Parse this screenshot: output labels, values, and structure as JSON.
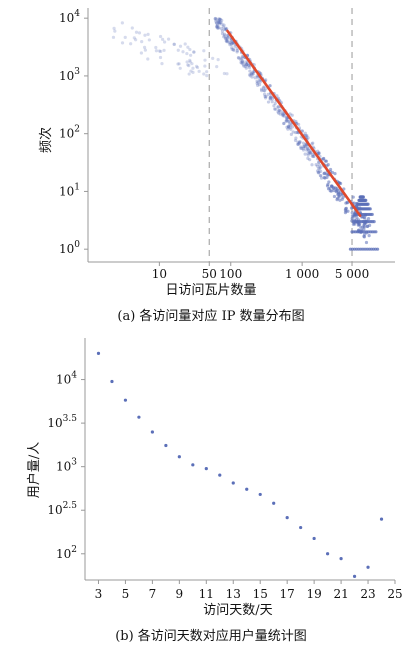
{
  "chart_data": [
    {
      "type": "scatter",
      "caption": "(a) 各访问量对应 IP 数量分布图",
      "xlabel": "日访问瓦片数量",
      "ylabel": "频次",
      "x_scale": "log",
      "y_scale": "log",
      "xlim": [
        1,
        20000
      ],
      "ylim": [
        0.6,
        15000
      ],
      "x_ticks": [
        {
          "value": 10,
          "label": "10"
        },
        {
          "value": 50,
          "label": "50"
        },
        {
          "value": 100,
          "label": "100"
        },
        {
          "value": 1000,
          "label": "1 000"
        },
        {
          "value": 5000,
          "label": "5 000"
        }
      ],
      "y_ticks": [
        {
          "value": 1,
          "base": "10",
          "exp": "0"
        },
        {
          "value": 10,
          "base": "10",
          "exp": "1"
        },
        {
          "value": 100,
          "base": "10",
          "exp": "2"
        },
        {
          "value": 1000,
          "base": "10",
          "exp": "3"
        },
        {
          "value": 10000,
          "base": "10",
          "exp": "4"
        }
      ],
      "vlines": [
        50,
        5000
      ],
      "fit_line": {
        "x": [
          90,
          6500
        ],
        "y": [
          6000,
          3.8
        ]
      },
      "colors": {
        "points": "#5b6fb8",
        "fit": "#e0492c",
        "vline": "#aaaaaa"
      }
    },
    {
      "type": "scatter",
      "caption": "(b) 各访问天数对应用户量统计图",
      "xlabel": "访问天数/天",
      "ylabel": "用户量/人",
      "y_scale": "log",
      "xlim": [
        2,
        25
      ],
      "ylim": [
        50,
        30000
      ],
      "x_ticks": [
        3,
        5,
        7,
        9,
        11,
        13,
        15,
        17,
        19,
        21,
        23,
        25
      ],
      "y_ticks": [
        {
          "value": 100,
          "base": "10",
          "exp": "2"
        },
        {
          "value": 316.2,
          "base": "10",
          "exp": "2.5"
        },
        {
          "value": 1000,
          "base": "10",
          "exp": "3"
        },
        {
          "value": 3162,
          "base": "10",
          "exp": "3.5"
        },
        {
          "value": 10000,
          "base": "10",
          "exp": "4"
        }
      ],
      "x": [
        3,
        4,
        5,
        6,
        7,
        8,
        9,
        10,
        11,
        12,
        13,
        14,
        15,
        16,
        17,
        18,
        19,
        20,
        21,
        22,
        23,
        24
      ],
      "y": [
        20000,
        9500,
        5800,
        3700,
        2500,
        1750,
        1300,
        1050,
        950,
        800,
        650,
        550,
        480,
        380,
        260,
        200,
        150,
        100,
        88,
        55,
        70,
        250
      ],
      "colors": {
        "points": "#5b6fb8"
      }
    }
  ]
}
